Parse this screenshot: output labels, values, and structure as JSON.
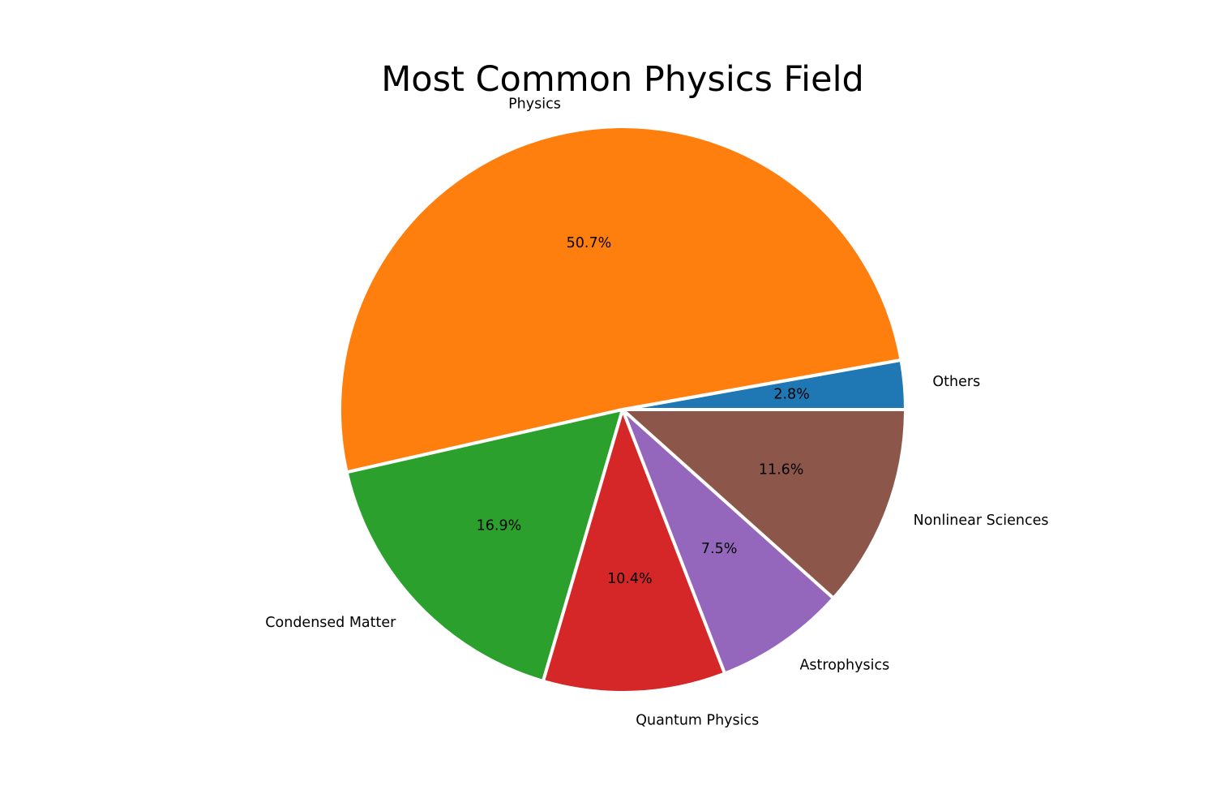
{
  "chart_data": {
    "type": "pie",
    "title": "Most Common Physics Field",
    "labels": [
      "Others",
      "Physics",
      "Condensed Matter",
      "Quantum Physics",
      "Astrophysics",
      "Nonlinear Sciences"
    ],
    "values": [
      2.8,
      50.7,
      16.9,
      10.4,
      7.5,
      11.6
    ],
    "percent_labels": [
      "2.8%",
      "50.7%",
      "16.9%",
      "10.4%",
      "7.5%",
      "11.6%"
    ],
    "colors": [
      "#1f77b4",
      "#ff7f0e",
      "#2ca02c",
      "#d62728",
      "#9467bd",
      "#8c564b"
    ],
    "start_angle_deg": 0,
    "direction": "counterclockwise",
    "legend": "none"
  }
}
